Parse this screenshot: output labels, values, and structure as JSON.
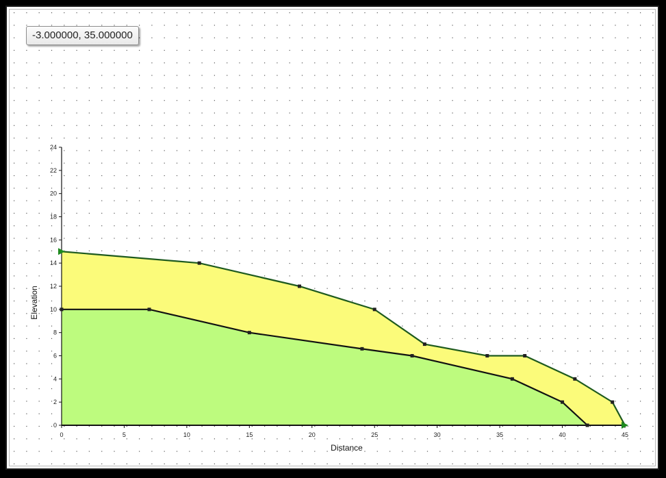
{
  "coordinate_readout": "-3.000000, 35.000000",
  "chart_data": {
    "type": "area",
    "xlabel": "Distance",
    "ylabel": "Elevation",
    "xlim": [
      0,
      45
    ],
    "ylim": [
      0,
      24
    ],
    "x_ticks": [
      0,
      5,
      10,
      15,
      20,
      25,
      30,
      35,
      40,
      45
    ],
    "y_ticks": [
      0,
      2,
      4,
      6,
      8,
      10,
      12,
      14,
      16,
      18,
      20,
      22,
      24
    ],
    "grid": "dotted",
    "series": [
      {
        "x": [
          0,
          11,
          19,
          25,
          29,
          34,
          37,
          41,
          44,
          45
        ],
        "y": [
          15,
          14,
          12,
          10,
          7,
          6,
          6,
          4,
          2,
          0
        ],
        "fill": "#fbfb7a",
        "stroke": "#1e5a1e"
      },
      {
        "x": [
          0,
          7,
          15,
          24,
          28,
          36,
          40,
          42
        ],
        "y": [
          10,
          10,
          8,
          6.6,
          6,
          4,
          2,
          0
        ],
        "fill": "#bdfb7e",
        "stroke": "#111111"
      }
    ],
    "boundary_markers": [
      {
        "x": 0,
        "y": 15
      },
      {
        "x": 45,
        "y": 0
      }
    ],
    "marker_color": "#1f8a1f"
  }
}
